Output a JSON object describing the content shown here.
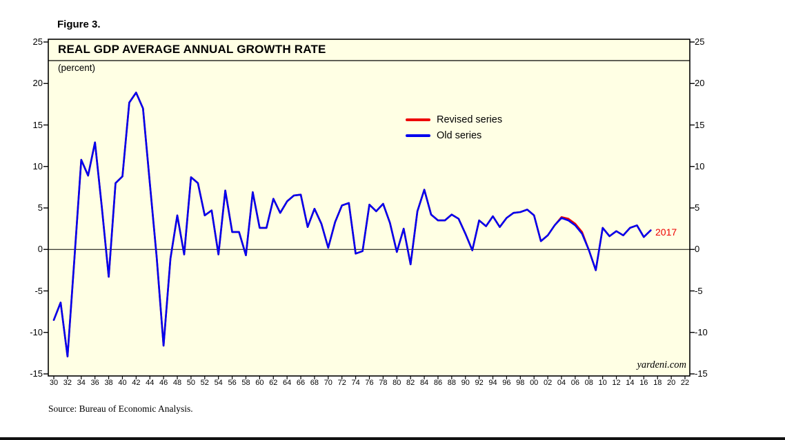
{
  "figure": {
    "label": "Figure 3."
  },
  "chart": {
    "watermark": "yardeni.com",
    "source": "Source: Bureau of Economic Analysis.",
    "end_label": "2017"
  },
  "colors": {
    "plot_background": "#FFFFE4",
    "axis": "#000000",
    "revised_series": "#EE0000",
    "old_series": "#0000EE",
    "end_label": "#EE0000"
  },
  "chart_data": {
    "type": "line",
    "title": "REAL GDP AVERAGE ANNUAL GROWTH RATE",
    "subtitle": "(percent)",
    "ylim": [
      -15,
      25
    ],
    "y_ticks": [
      25,
      20,
      15,
      10,
      5,
      0,
      -5,
      -10,
      -15
    ],
    "x_range_years": [
      1930,
      2022
    ],
    "x_tick_step": 2,
    "x_tick_labels": [
      "30",
      "32",
      "34",
      "36",
      "38",
      "40",
      "42",
      "44",
      "46",
      "48",
      "50",
      "52",
      "54",
      "56",
      "58",
      "60",
      "62",
      "64",
      "66",
      "68",
      "70",
      "72",
      "74",
      "76",
      "78",
      "80",
      "82",
      "84",
      "86",
      "88",
      "90",
      "92",
      "94",
      "96",
      "98",
      "00",
      "02",
      "04",
      "06",
      "08",
      "10",
      "12",
      "14",
      "16",
      "18",
      "20",
      "22"
    ],
    "grid": false,
    "legend_position": "upper-middle-right",
    "start_year": 1930,
    "series": [
      {
        "name": "Revised series",
        "color": "#EE0000",
        "values": [
          -8.5,
          -6.4,
          -12.9,
          -1.2,
          10.8,
          8.9,
          12.9,
          5.1,
          -3.3,
          8.0,
          8.8,
          17.7,
          18.9,
          17.0,
          8.0,
          -1.0,
          -11.6,
          -1.1,
          4.1,
          -0.6,
          8.7,
          8.0,
          4.1,
          4.7,
          -0.6,
          7.1,
          2.1,
          2.1,
          -0.7,
          6.9,
          2.6,
          2.6,
          6.1,
          4.4,
          5.8,
          6.5,
          6.6,
          2.7,
          4.9,
          3.1,
          0.2,
          3.3,
          5.3,
          5.6,
          -0.5,
          -0.2,
          5.4,
          4.6,
          5.5,
          3.2,
          -0.3,
          2.5,
          -1.8,
          4.6,
          7.2,
          4.2,
          3.5,
          3.5,
          4.2,
          3.7,
          1.9,
          -0.1,
          3.5,
          2.8,
          4.0,
          2.7,
          3.8,
          4.4,
          4.5,
          4.8,
          4.1,
          1.0,
          1.7,
          2.9,
          3.9,
          3.7,
          3.1,
          2.1,
          -0.1,
          -2.5,
          2.6,
          1.6,
          2.2,
          1.7,
          2.6,
          2.9,
          1.5,
          2.3
        ]
      },
      {
        "name": "Old series",
        "color": "#0000EE",
        "values": [
          -8.5,
          -6.4,
          -12.9,
          -1.2,
          10.8,
          8.9,
          12.9,
          5.1,
          -3.3,
          8.0,
          8.8,
          17.7,
          18.9,
          17.0,
          8.0,
          -1.0,
          -11.6,
          -1.1,
          4.1,
          -0.6,
          8.7,
          8.0,
          4.1,
          4.7,
          -0.6,
          7.1,
          2.1,
          2.1,
          -0.7,
          6.9,
          2.6,
          2.6,
          6.1,
          4.4,
          5.8,
          6.5,
          6.6,
          2.7,
          4.9,
          3.1,
          0.2,
          3.3,
          5.3,
          5.6,
          -0.5,
          -0.2,
          5.4,
          4.6,
          5.5,
          3.2,
          -0.3,
          2.5,
          -1.8,
          4.6,
          7.2,
          4.2,
          3.5,
          3.5,
          4.2,
          3.7,
          1.9,
          -0.1,
          3.5,
          2.8,
          4.0,
          2.7,
          3.8,
          4.4,
          4.5,
          4.8,
          4.1,
          1.0,
          1.7,
          2.9,
          3.8,
          3.5,
          2.9,
          1.9,
          -0.1,
          -2.5,
          2.6,
          1.6,
          2.2,
          1.7,
          2.6,
          2.9,
          1.5,
          2.3
        ]
      }
    ]
  }
}
